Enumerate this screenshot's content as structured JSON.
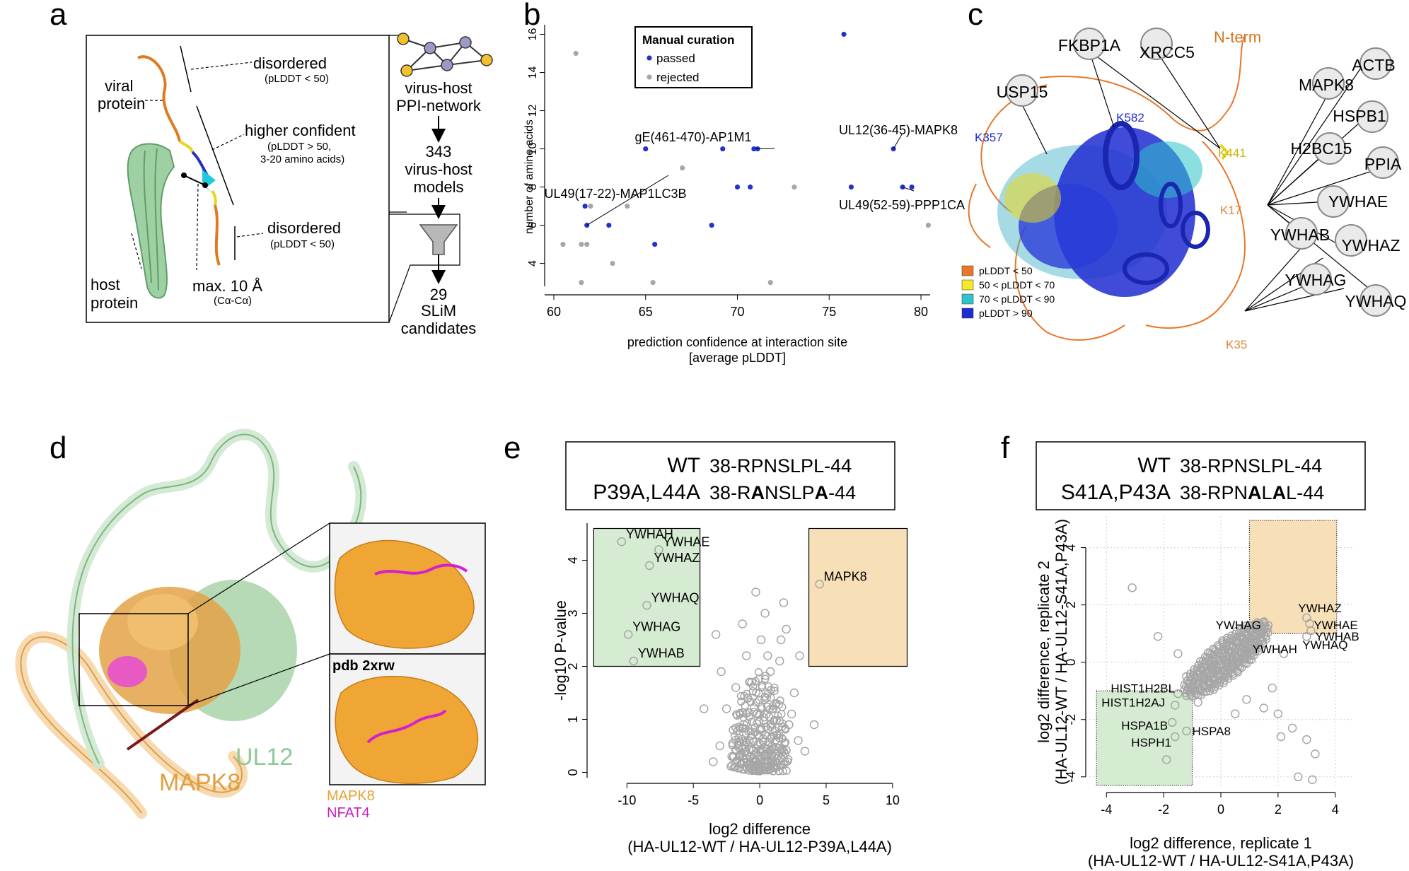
{
  "panels": {
    "a": {
      "letter": "a",
      "viral_protein": [
        "viral",
        "protein"
      ],
      "host_protein": [
        "host",
        "protein"
      ],
      "disordered_top": "disordered",
      "disordered_top_sub": "(pLDDT < 50)",
      "higher_confident": "higher confident",
      "higher_confident_sub1": "(pLDDT > 50,",
      "higher_confident_sub2": "3-20 amino acids)",
      "disordered_bottom": "disordered",
      "disordered_bottom_sub": "(pLDDT < 50)",
      "max_dist": "max. 10 Å",
      "max_dist_sub": "(Cα-Cα)",
      "flow": [
        "virus-host",
        "PPI-network",
        "343",
        "virus-host",
        "models",
        "29",
        "SLiM",
        "candidates"
      ]
    },
    "b": {
      "letter": "b"
    },
    "c": {
      "letter": "c",
      "proteins": [
        "FKBP1A",
        "XRCC5",
        "USP15",
        "MAPK8",
        "ACTB",
        "HSPB1",
        "H2BC15",
        "PPIA",
        "YWHAE",
        "YWHAB",
        "YWHAZ",
        "YWHAG",
        "YWHAQ"
      ],
      "sites": [
        "K582",
        "K357",
        "K441",
        "K17",
        "K35"
      ],
      "nterm": "N-term",
      "legend": [
        {
          "label": "pLDDT < 50",
          "color": "#e8772a"
        },
        {
          "label": "50 < pLDDT < 70",
          "color": "#f4ea2a"
        },
        {
          "label": "70 < pLDDT < 90",
          "color": "#2ec4c8"
        },
        {
          "label": "pLDDT > 90",
          "color": "#1f2bd0"
        }
      ]
    },
    "d": {
      "letter": "d",
      "mapk8": "MAPK8",
      "ul12": "UL12",
      "pdb": "pdb 2xrw",
      "legend_mapk8": "MAPK8",
      "legend_nfat4": "NFAT4"
    },
    "e": {
      "letter": "e",
      "wt_label": "WT",
      "wt_seq": "38-RPNSLPL-44",
      "mut_label": "P39A,L44A",
      "mut_seq_parts": [
        "38-R",
        "A",
        "NSLP",
        "A",
        "-44"
      ]
    },
    "f": {
      "letter": "f",
      "wt_label": "WT",
      "wt_seq": "38-RPNSLPL-44",
      "mut_label": "S41A,P43A",
      "mut_seq_parts": [
        "38-RPN",
        "A",
        "L",
        "A",
        "L-44"
      ]
    }
  },
  "chart_data": [
    {
      "panel": "b",
      "type": "scatter",
      "xlabel": "prediction confidence at interaction site",
      "xlabel2": "[average pLDDT]",
      "ylabel": "number of amino acids",
      "xlim": [
        59.5,
        80.5
      ],
      "ylim": [
        2.8,
        16.5
      ],
      "xticks": [
        60,
        65,
        70,
        75,
        80
      ],
      "yticks": [
        4,
        6,
        8,
        10,
        12,
        14,
        16
      ],
      "legend_title": "Manual curation",
      "legend_entries": [
        {
          "name": "passed",
          "color": "#2233cc"
        },
        {
          "name": "rejected",
          "color": "#a6a6a6"
        }
      ],
      "series": [
        {
          "name": "passed",
          "color": "#2233cc",
          "points": [
            [
              75.8,
              16
            ],
            [
              65,
              10
            ],
            [
              69.2,
              10
            ],
            [
              70.9,
              10
            ],
            [
              71.1,
              10
            ],
            [
              78.5,
              10
            ],
            [
              61.7,
              7
            ],
            [
              61.8,
              6
            ],
            [
              63,
              6
            ],
            [
              65.5,
              5
            ],
            [
              68.6,
              6
            ],
            [
              70,
              8
            ],
            [
              70.7,
              8
            ],
            [
              76.2,
              8
            ],
            [
              79,
              8
            ],
            [
              79.5,
              8
            ]
          ]
        },
        {
          "name": "rejected",
          "color": "#a6a6a6",
          "points": [
            [
              61.2,
              15
            ],
            [
              60.5,
              5
            ],
            [
              61.5,
              5
            ],
            [
              61.8,
              5
            ],
            [
              62,
              7
            ],
            [
              61.5,
              3
            ],
            [
              63.2,
              4
            ],
            [
              64,
              7
            ],
            [
              67,
              9
            ],
            [
              65.4,
              3
            ],
            [
              71.8,
              3
            ],
            [
              73.1,
              8
            ],
            [
              80.4,
              6
            ]
          ]
        }
      ],
      "annotations": [
        {
          "text": "gE(461-470)-AP1M1",
          "x": 71,
          "y": 10
        },
        {
          "text": "UL12(36-45)-MAPK8",
          "x": 78.5,
          "y": 10
        },
        {
          "text": "UL49(17-22)-MAP1LC3B",
          "x": 61.8,
          "y": 6
        },
        {
          "text": "UL49(52-59)-PPP1CA",
          "x": 79,
          "y": 8
        }
      ]
    },
    {
      "panel": "e",
      "type": "scatter",
      "xlabel": "log2 difference",
      "xlabel2": "(HA-UL12-WT / HA-UL12-P39A,L44A)",
      "ylabel": "-log10 P-value",
      "xlim": [
        -13,
        11.5
      ],
      "ylim": [
        -0.1,
        4.7
      ],
      "xticks": [
        -10,
        -5,
        0,
        5,
        10
      ],
      "yticks": [
        0,
        1,
        2,
        3,
        4
      ],
      "highlighted": [
        {
          "label": "YWHAH",
          "x": -10.4,
          "y": 4.35
        },
        {
          "label": "YWHAE",
          "x": -7.6,
          "y": 4.2
        },
        {
          "label": "YWHAZ",
          "x": -8.3,
          "y": 3.9
        },
        {
          "label": "YWHAQ",
          "x": -8.5,
          "y": 3.15
        },
        {
          "label": "YWHAG",
          "x": -9.9,
          "y": 2.6
        },
        {
          "label": "YWHAB",
          "x": -9.5,
          "y": 2.1
        },
        {
          "label": "MAPK8",
          "x": 4.5,
          "y": 3.55
        }
      ],
      "other_points": [
        [
          -0.4,
          0.2
        ],
        [
          0.3,
          0.4
        ],
        [
          -0.8,
          0.6
        ],
        [
          0.9,
          0.3
        ],
        [
          -1.2,
          0.9
        ],
        [
          1.3,
          0.7
        ],
        [
          -0.2,
          1.1
        ],
        [
          0.5,
          1.4
        ],
        [
          -1.6,
          0.5
        ],
        [
          1.8,
          0.4
        ],
        [
          -0.6,
          1.7
        ],
        [
          0.8,
          1.9
        ],
        [
          -2.1,
          0.3
        ],
        [
          2.2,
          0.9
        ],
        [
          -1.0,
          2.2
        ],
        [
          0.1,
          2.5
        ],
        [
          1.5,
          2.1
        ],
        [
          -2.5,
          1.2
        ],
        [
          2.6,
          1.5
        ],
        [
          -1.3,
          2.8
        ],
        [
          0.4,
          3.0
        ],
        [
          -3.3,
          2.6
        ],
        [
          1.8,
          3.2
        ],
        [
          -2.0,
          0.8
        ],
        [
          2.9,
          0.6
        ],
        [
          -3.5,
          0.2
        ],
        [
          3.4,
          0.4
        ],
        [
          1.0,
          1.2
        ],
        [
          -0.9,
          1.4
        ],
        [
          0.0,
          0.8
        ],
        [
          2.0,
          2.7
        ],
        [
          -1.8,
          1.6
        ],
        [
          -4.2,
          1.2
        ],
        [
          4.1,
          0.9
        ],
        [
          -2.9,
          1.9
        ],
        [
          3.0,
          2.2
        ],
        [
          1.6,
          2.5
        ],
        [
          -0.3,
          3.4
        ],
        [
          -3.0,
          0.5
        ],
        [
          2.4,
          1.1
        ],
        [
          0.6,
          2.2
        ],
        [
          -1.5,
          0.2
        ],
        [
          1.1,
          0.1
        ],
        [
          -0.5,
          0.05
        ]
      ],
      "boxes": [
        {
          "color": "#d6ecd2",
          "x0": -12.5,
          "x1": -4.5,
          "y0": 2.0,
          "y1": 4.6
        },
        {
          "color": "#f7dfb8",
          "x0": 3.7,
          "x1": 11.1,
          "y0": 2.0,
          "y1": 4.6
        }
      ]
    },
    {
      "panel": "f",
      "type": "scatter",
      "xlabel": "log2 difference, replicate 1",
      "xlabel2": "(HA-UL12-WT / HA-UL12-S41A,P43A)",
      "ylabel": "log2 difference, replicate 2",
      "ylabel2": "(HA-UL12-WT / HA-UL12-S41A,P43A)",
      "xlim": [
        -4.6,
        4.6
      ],
      "ylim": [
        -4.4,
        5.1
      ],
      "xticks": [
        -4,
        -2,
        0,
        2,
        4
      ],
      "yticks": [
        -4,
        -2,
        0,
        2,
        4
      ],
      "grid": true,
      "highlighted": [
        {
          "label": "YWHAZ",
          "x": 3.0,
          "y": 1.55
        },
        {
          "label": "YWHAE",
          "x": 3.1,
          "y": 1.35
        },
        {
          "label": "YWHAB",
          "x": 3.15,
          "y": 1.1
        },
        {
          "label": "YWHAQ",
          "x": 3.0,
          "y": 0.9
        },
        {
          "label": "YWHAG",
          "x": 1.5,
          "y": 1.4
        },
        {
          "label": "YWHAH",
          "x": 1.4,
          "y": 0.9
        },
        {
          "label": "HIST1H2BL",
          "x": -1.5,
          "y": -1.1
        },
        {
          "label": "HIST1H2AJ",
          "x": -1.6,
          "y": -1.5
        },
        {
          "label": "HSPA1B",
          "x": -1.7,
          "y": -2.1
        },
        {
          "label": "HSPH1",
          "x": -1.6,
          "y": -2.6
        },
        {
          "label": "HSPA8",
          "x": -1.2,
          "y": -2.4
        }
      ],
      "other_points": [
        [
          -3.1,
          2.6
        ],
        [
          1.5,
          -1.6
        ],
        [
          2.0,
          -1.8
        ],
        [
          2.5,
          -2.3
        ],
        [
          3.0,
          -2.7
        ],
        [
          3.3,
          -3.2
        ],
        [
          2.7,
          -4.0
        ],
        [
          3.2,
          -4.1
        ],
        [
          -1.9,
          -3.4
        ],
        [
          2.1,
          -2.6
        ],
        [
          1.8,
          -0.9
        ],
        [
          -2.2,
          0.9
        ],
        [
          0.9,
          -1.3
        ],
        [
          -1.5,
          0.3
        ],
        [
          2.2,
          0.3
        ],
        [
          -0.8,
          -1.4
        ],
        [
          1.2,
          0.6
        ],
        [
          -1.2,
          -0.5
        ],
        [
          0.5,
          -1.8
        ]
      ],
      "cluster_center": [
        0.2,
        0.1
      ],
      "boxes": [
        {
          "color": "#d6ecd2",
          "x0": -4.35,
          "x1": -1.0,
          "y0": -4.3,
          "y1": -1.0
        },
        {
          "color": "#f7dfb8",
          "x0": 1.0,
          "x1": 4.05,
          "y0": 1.0,
          "y1": 4.95
        }
      ]
    }
  ]
}
